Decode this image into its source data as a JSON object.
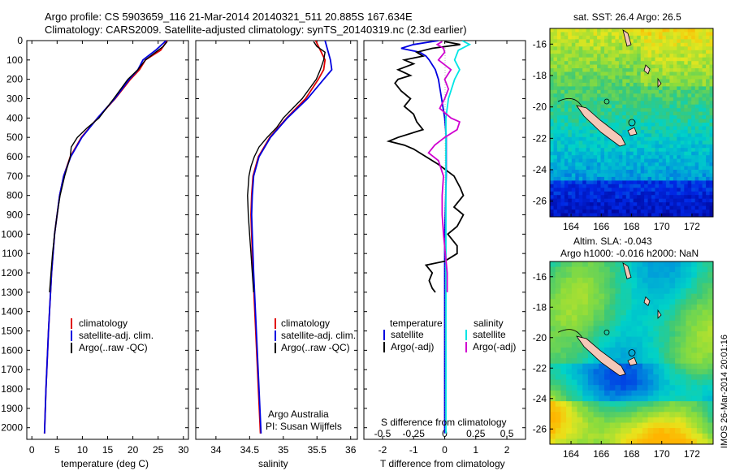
{
  "title_line1": "Argo profile: CS 5903659_116 21-Mar-2014 20140321_511 20.885S 167.634E",
  "title_line2": "Climatology: CARS2009. Satellite-adjusted climatology: synTS_20140319.nc (2.3d earlier)",
  "colors": {
    "climatology": "#e00000",
    "satellite": "#0000e0",
    "argo": "#000000",
    "salinity_satellite": "#00e5e5",
    "salinity_argo": "#d000d0"
  },
  "chart_data": [
    {
      "id": "temperature",
      "type": "line",
      "xlabel": "temperature (deg C)",
      "ylim": [
        0,
        2060
      ],
      "xlim": [
        -1,
        31
      ],
      "yticks": [
        "0",
        "100",
        "200",
        "300",
        "400",
        "500",
        "600",
        "700",
        "800",
        "900",
        "1000",
        "1100",
        "1200",
        "1300",
        "1400",
        "1500",
        "1600",
        "1700",
        "1800",
        "1900",
        "2000"
      ],
      "xticks": [
        "0",
        "5",
        "10",
        "15",
        "20",
        "25",
        "30"
      ],
      "legend": [
        "climatology",
        "satellite-adj. clim.",
        "Argo(..raw -QC)"
      ],
      "series": [
        {
          "name": "climatology",
          "depth": [
            0,
            50,
            100,
            150,
            200,
            300,
            400,
            500,
            600,
            700,
            800,
            1000,
            1200,
            1500,
            1800,
            2030
          ],
          "values": [
            26.8,
            25.5,
            22.5,
            21.3,
            19.5,
            16.5,
            13.0,
            9.8,
            7.6,
            6.3,
            5.5,
            4.5,
            3.9,
            3.3,
            2.8,
            2.5
          ]
        },
        {
          "name": "satellite-adj. clim.",
          "depth": [
            0,
            50,
            100,
            150,
            200,
            300,
            400,
            500,
            600,
            700,
            800,
            1000,
            1200,
            1500,
            1800,
            2030
          ],
          "values": [
            26.6,
            24.5,
            22.0,
            21.0,
            19.3,
            16.4,
            13.0,
            9.9,
            7.7,
            6.3,
            5.5,
            4.5,
            3.9,
            3.3,
            2.8,
            2.5
          ]
        },
        {
          "name": "Argo(..raw -QC)",
          "depth": [
            5,
            30,
            60,
            100,
            150,
            200,
            300,
            400,
            450,
            500,
            550,
            600,
            700,
            800,
            900,
            1000,
            1100,
            1200,
            1300
          ],
          "values": [
            26.8,
            26.0,
            24.5,
            22.5,
            21.0,
            19.0,
            16.2,
            13.3,
            11.0,
            9.0,
            7.8,
            7.6,
            6.5,
            5.6,
            5.0,
            4.5,
            4.1,
            3.8,
            3.5
          ]
        }
      ]
    },
    {
      "id": "salinity",
      "type": "line",
      "xlabel": "salinity",
      "ylim": [
        0,
        2060
      ],
      "xlim": [
        33.7,
        36.1
      ],
      "xticks": [
        "34",
        "34.5",
        "35",
        "35.5",
        "36"
      ],
      "legend": [
        "climatology",
        "satellite-adj. clim.",
        "Argo(..raw -QC)"
      ],
      "annotation": [
        "Argo Australia",
        "PI: Susan Wijffels"
      ],
      "series": [
        {
          "name": "climatology",
          "depth": [
            0,
            50,
            100,
            150,
            200,
            300,
            400,
            500,
            600,
            700,
            800,
            900,
            1000,
            1200,
            1500,
            1800,
            2030
          ],
          "values": [
            35.48,
            35.55,
            35.62,
            35.6,
            35.52,
            35.33,
            35.05,
            34.8,
            34.63,
            34.55,
            34.53,
            34.52,
            34.53,
            34.55,
            34.59,
            34.63,
            34.66
          ]
        },
        {
          "name": "satellite-adj. clim.",
          "depth": [
            0,
            50,
            100,
            150,
            200,
            300,
            400,
            500,
            600,
            700,
            800,
            900,
            1000,
            1200,
            1500,
            1800,
            2030
          ],
          "values": [
            35.62,
            35.66,
            35.7,
            35.72,
            35.6,
            35.36,
            35.06,
            34.81,
            34.64,
            34.56,
            34.54,
            34.53,
            34.54,
            34.56,
            34.6,
            34.64,
            34.67
          ]
        },
        {
          "name": "Argo(..raw -QC)",
          "depth": [
            5,
            30,
            60,
            100,
            150,
            200,
            300,
            400,
            450,
            500,
            550,
            600,
            650,
            700,
            800,
            900,
            1000,
            1100,
            1200,
            1300
          ],
          "values": [
            35.45,
            35.5,
            35.62,
            35.6,
            35.55,
            35.49,
            35.28,
            35.0,
            34.9,
            34.76,
            34.64,
            34.57,
            34.52,
            34.49,
            34.47,
            34.48,
            34.5,
            34.52,
            34.54,
            34.56
          ]
        }
      ]
    },
    {
      "id": "differences",
      "type": "line",
      "xlabel": "T difference from climatology",
      "secondary_xlabel": "S difference from climatology",
      "ylim": [
        0,
        2060
      ],
      "xlim": [
        -2.6,
        2.6
      ],
      "xticks": [
        "-2",
        "-1",
        "0",
        "1",
        "2"
      ],
      "secondary_xticks": [
        "-0.5",
        "-0.25",
        "0",
        "0.25",
        "0.5"
      ],
      "legend_temperature": {
        "title": "temperature",
        "items": [
          "satellite",
          "Argo(-adj)"
        ]
      },
      "legend_salinity": {
        "title": "salinity",
        "items": [
          "satellite",
          "Argo(-adj)"
        ]
      },
      "series": [
        {
          "name": "temperature satellite",
          "depth": [
            0,
            20,
            40,
            60,
            80,
            100,
            150,
            200,
            300,
            400,
            500,
            700,
            1000,
            1500,
            2030
          ],
          "values": [
            -0.2,
            -1.0,
            -1.4,
            -0.8,
            -0.6,
            -0.5,
            -0.3,
            -0.2,
            -0.1,
            0.0,
            0.05,
            0.05,
            0.0,
            0.0,
            0.0
          ]
        },
        {
          "name": "temperature Argo(-adj)",
          "depth": [
            5,
            20,
            40,
            60,
            80,
            100,
            120,
            150,
            180,
            200,
            220,
            260,
            300,
            340,
            380,
            420,
            460,
            500,
            520,
            540,
            560,
            600,
            640,
            700,
            760,
            800,
            860,
            900,
            960,
            1000,
            1060,
            1100,
            1140,
            1160,
            1200,
            1240,
            1280,
            1300
          ],
          "values": [
            0.0,
            0.5,
            -0.4,
            -0.9,
            -0.7,
            -1.3,
            -1.0,
            -1.5,
            -1.1,
            -1.5,
            -1.6,
            -1.4,
            -1.1,
            -1.3,
            -1.0,
            -0.9,
            -0.7,
            -1.5,
            -1.8,
            -1.3,
            -1.0,
            -0.6,
            -0.2,
            0.3,
            0.5,
            0.6,
            0.3,
            0.6,
            0.4,
            0.1,
            0.4,
            0.4,
            0.0,
            -0.6,
            -0.4,
            -0.5,
            -0.4,
            -0.3
          ]
        },
        {
          "name": "salinity satellite",
          "depth": [
            0,
            20,
            50,
            100,
            150,
            200,
            300,
            400,
            500,
            700,
            1000,
            1500,
            2030
          ],
          "values": [
            0.14,
            0.2,
            0.11,
            0.08,
            0.12,
            0.08,
            0.03,
            0.01,
            0.01,
            0.01,
            0.01,
            0.01,
            0.01
          ]
        },
        {
          "name": "salinity Argo(-adj)",
          "depth": [
            5,
            20,
            40,
            60,
            100,
            150,
            200,
            250,
            300,
            350,
            400,
            420,
            460,
            500,
            540,
            580,
            620,
            700,
            800,
            900,
            1000,
            1200,
            1250,
            1300
          ],
          "values": [
            -0.02,
            -0.06,
            -0.01,
            0.0,
            -0.05,
            0.05,
            0.0,
            0.03,
            0.0,
            -0.04,
            0.05,
            0.12,
            0.1,
            0.0,
            -0.08,
            -0.13,
            -0.05,
            -0.01,
            -0.02,
            -0.02,
            -0.01,
            0.02,
            0.02,
            0.02
          ]
        }
      ]
    },
    {
      "id": "map_sst",
      "type": "heatmap",
      "title": "sat. SST: 26.4 Argo: 26.5",
      "xticks": [
        "164",
        "166",
        "168",
        "170",
        "172"
      ],
      "yticks": [
        "-16",
        "-18",
        "-20",
        "-22",
        "-24",
        "-26"
      ]
    },
    {
      "id": "map_sla",
      "type": "heatmap",
      "title_line1": "Altim. SLA: -0.043",
      "title_line2": "Argo h1000: -0.016 h2000: NaN",
      "xticks": [
        "164",
        "166",
        "168",
        "170",
        "172"
      ],
      "yticks": [
        "-16",
        "-18",
        "-20",
        "-22",
        "-24",
        "-26"
      ],
      "side_label": "IMOS 26-Mar-2014 20:01:16"
    }
  ]
}
